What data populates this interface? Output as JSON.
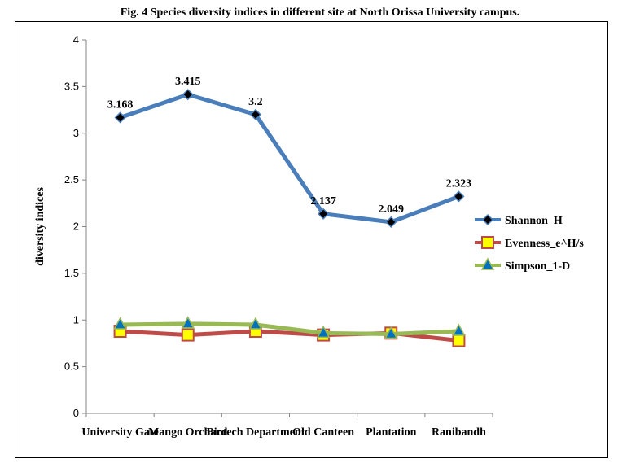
{
  "chart_data": {
    "type": "line",
    "title": "Fig. 4 Species diversity indices in different site at North Orissa University campus.",
    "xlabel": "",
    "ylabel": "diversity indices",
    "ylim": [
      0,
      4
    ],
    "yticks": [
      "0",
      "0.5",
      "1",
      "1.5",
      "2",
      "2.5",
      "3",
      "3.5",
      "4"
    ],
    "categories": [
      "University Gate",
      "Mango Orchard",
      "Biotech Department",
      "Old Canteen",
      "Plantation",
      "Ranibandh"
    ],
    "legend_position": "right",
    "grid": false,
    "series": [
      {
        "name": "Shannon_H",
        "color": "#4a7ebb",
        "marker": "diamond",
        "values": [
          3.168,
          3.415,
          3.2,
          2.137,
          2.049,
          2.323
        ],
        "labels": [
          "3.168",
          "3.415",
          "3.2",
          "2.137",
          "2.049",
          "2.323"
        ]
      },
      {
        "name": "Evenness_e^H/s",
        "color": "#be4b48",
        "marker": "square",
        "values": [
          0.88,
          0.84,
          0.88,
          0.84,
          0.86,
          0.78
        ]
      },
      {
        "name": "Simpson_1-D",
        "color": "#98b954",
        "marker": "triangle",
        "values": [
          0.95,
          0.96,
          0.95,
          0.86,
          0.85,
          0.88
        ]
      }
    ]
  }
}
